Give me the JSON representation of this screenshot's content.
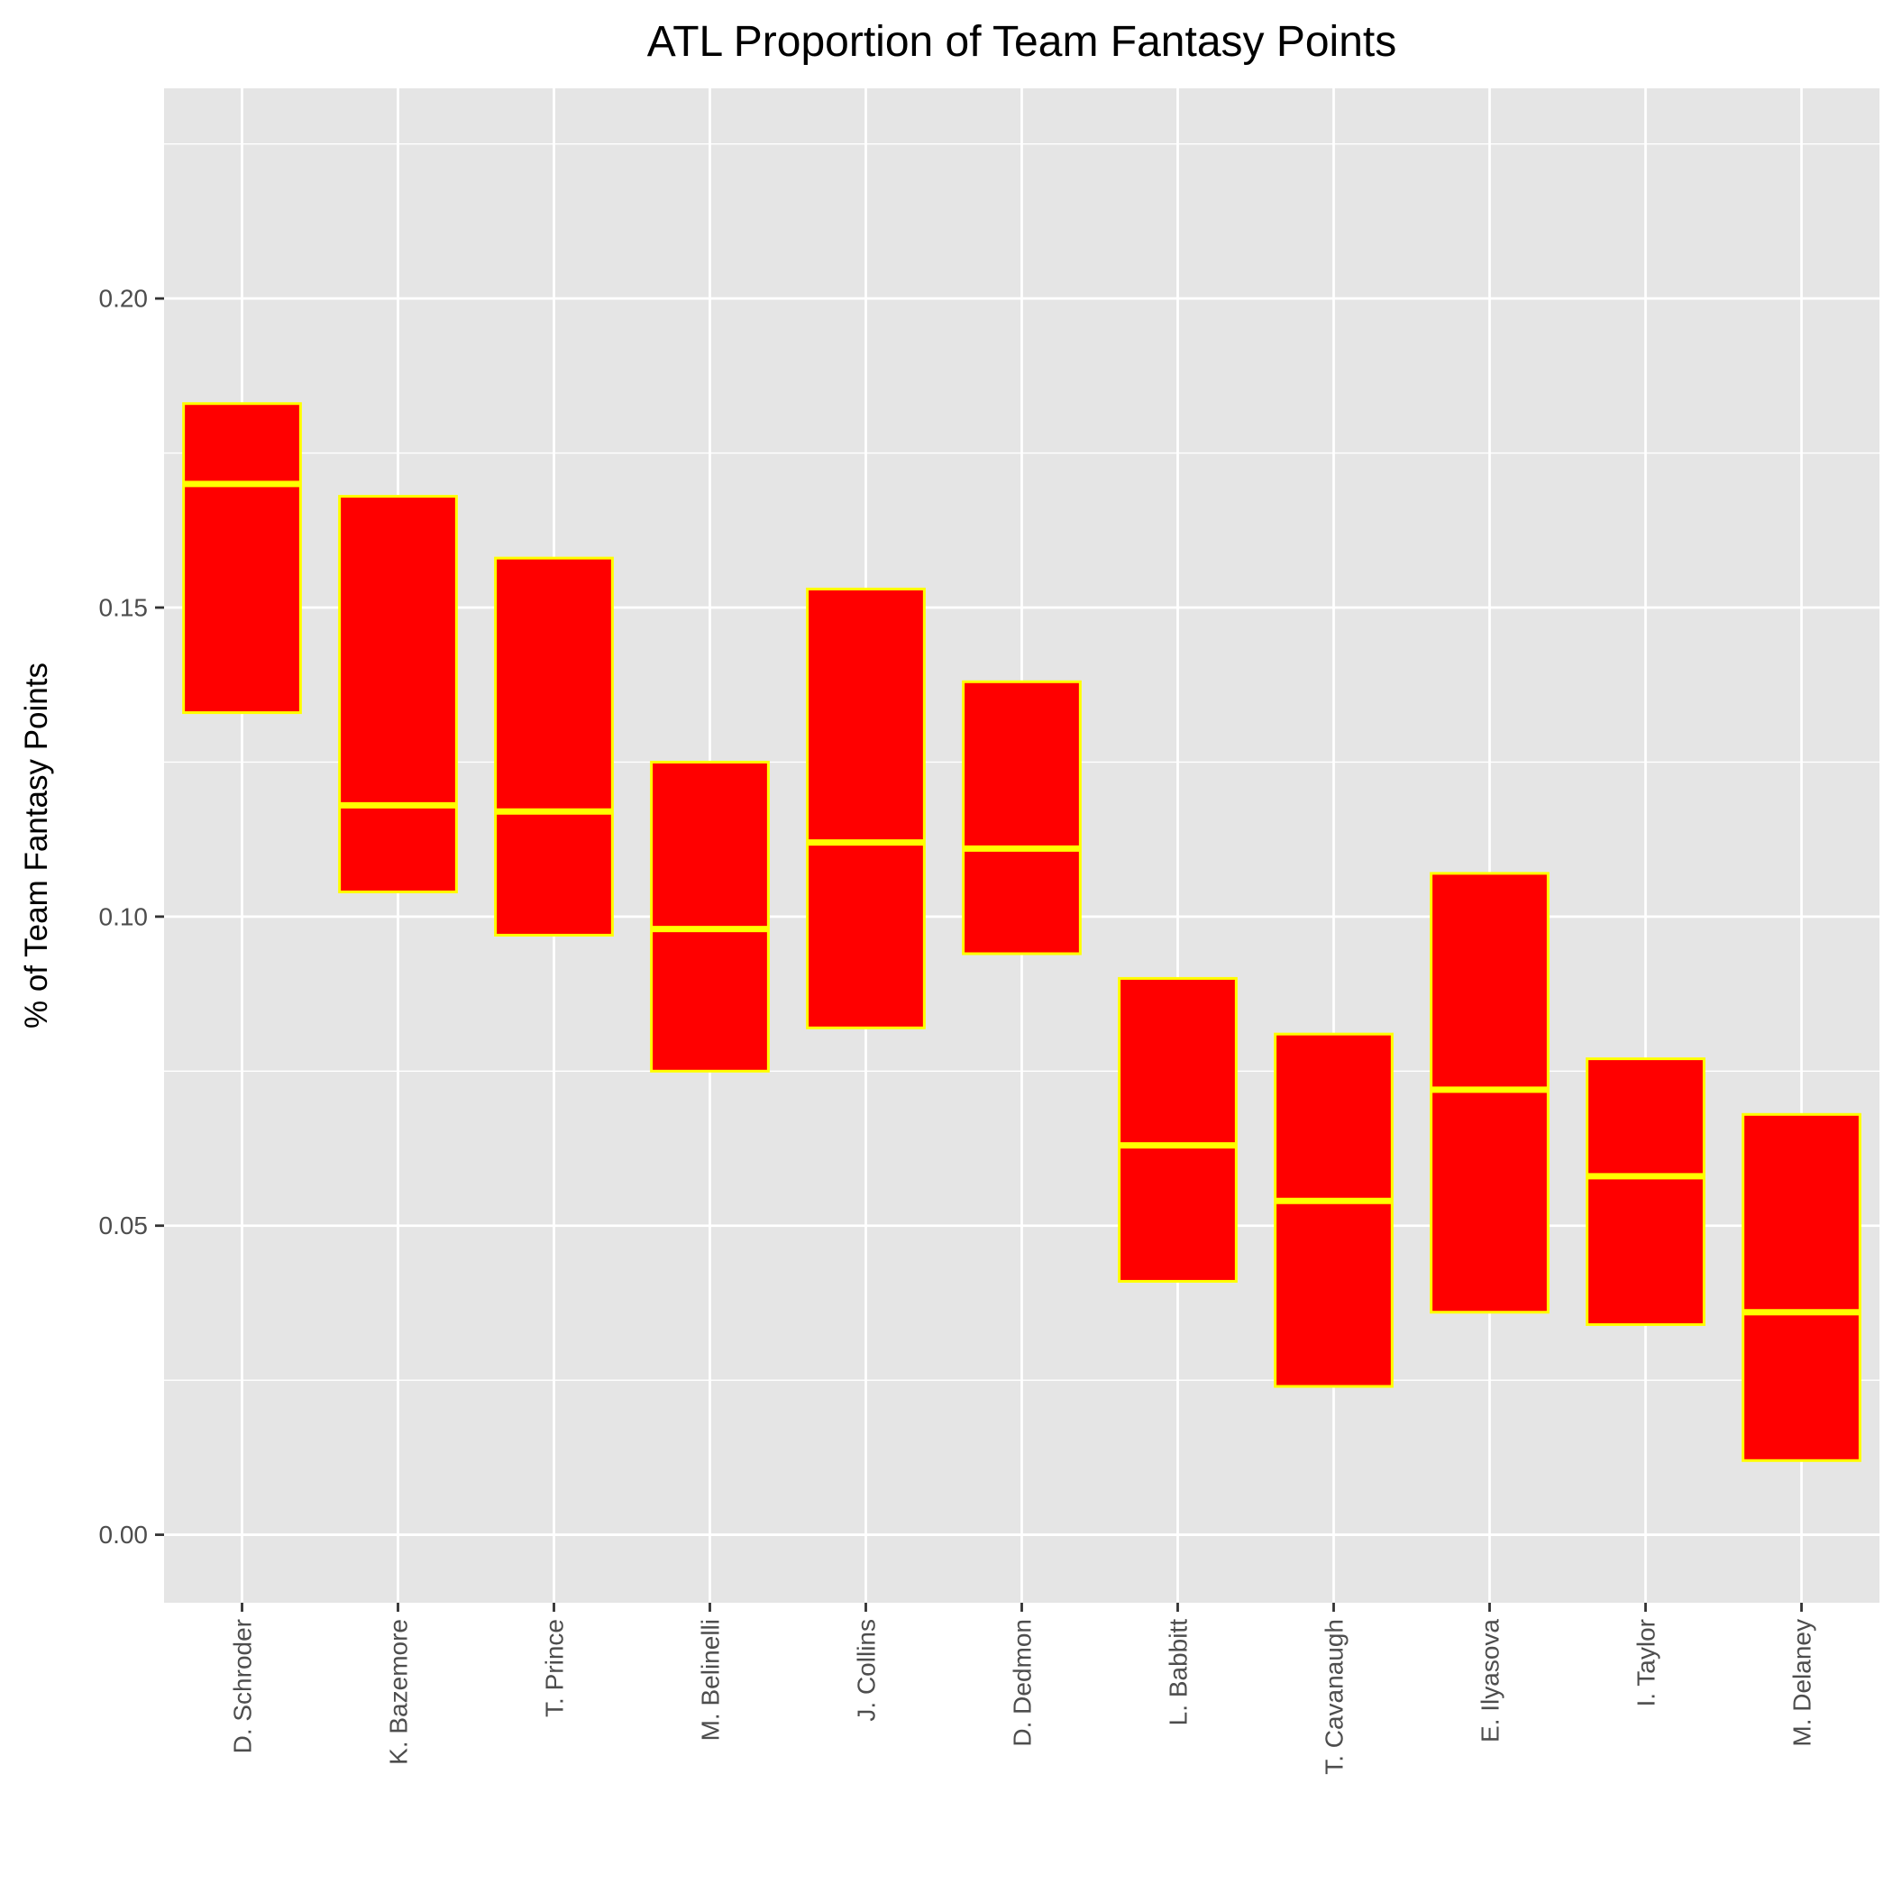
{
  "chart_data": {
    "type": "boxplot",
    "title": "ATL Proportion of Team Fantasy Points",
    "ylabel": "% of Team Fantasy Points",
    "xlabel": "",
    "ylim": [
      -0.011,
      0.234
    ],
    "y_ticks": [
      0.0,
      0.05,
      0.1,
      0.15,
      0.2
    ],
    "y_tick_labels": [
      "0.00",
      "0.05",
      "0.10",
      "0.15",
      "0.20"
    ],
    "grid": true,
    "legend": "none",
    "colors": {
      "box_fill": "#ff0000",
      "box_stroke": "#ffff00",
      "panel_background": "#e5e5e5",
      "grid_line": "#ffffff",
      "tick_text": "#4d4d4d"
    },
    "categories": [
      "D. Schroder",
      "K. Bazemore",
      "T. Prince",
      "M. Belinelli",
      "J. Collins",
      "D. Dedmon",
      "L. Babbitt",
      "T. Cavanaugh",
      "E. Ilyasova",
      "I. Taylor",
      "M. Delaney"
    ],
    "boxes": [
      {
        "q1": 0.133,
        "median": 0.17,
        "q3": 0.183
      },
      {
        "q1": 0.104,
        "median": 0.118,
        "q3": 0.168
      },
      {
        "q1": 0.097,
        "median": 0.117,
        "q3": 0.158
      },
      {
        "q1": 0.075,
        "median": 0.098,
        "q3": 0.125
      },
      {
        "q1": 0.082,
        "median": 0.112,
        "q3": 0.153
      },
      {
        "q1": 0.094,
        "median": 0.111,
        "q3": 0.138
      },
      {
        "q1": 0.041,
        "median": 0.063,
        "q3": 0.09
      },
      {
        "q1": 0.024,
        "median": 0.054,
        "q3": 0.081
      },
      {
        "q1": 0.036,
        "median": 0.072,
        "q3": 0.107
      },
      {
        "q1": 0.034,
        "median": 0.058,
        "q3": 0.077
      },
      {
        "q1": 0.012,
        "median": 0.036,
        "q3": 0.068
      }
    ]
  }
}
